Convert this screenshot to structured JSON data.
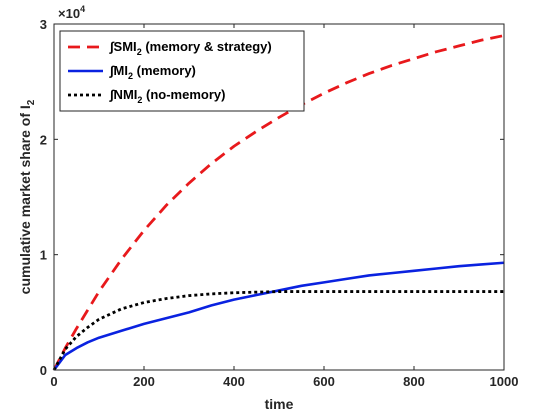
{
  "chart_data": {
    "type": "line",
    "xlabel": "time",
    "ylabel": "cumulative market share of I",
    "ylabel_subscript": "2",
    "exponent_label": {
      "base": "×10",
      "power": "4"
    },
    "xlim": [
      0,
      1000
    ],
    "ylim": [
      0,
      3
    ],
    "xticks": [
      0,
      200,
      400,
      600,
      800,
      1000
    ],
    "yticks": [
      0,
      1,
      2,
      3
    ],
    "grid": false,
    "legend_position": "top-left",
    "x": [
      0,
      25,
      50,
      75,
      100,
      150,
      200,
      250,
      300,
      350,
      400,
      450,
      500,
      550,
      600,
      650,
      700,
      750,
      800,
      850,
      900,
      950,
      1000
    ],
    "series": [
      {
        "name": "∫SMI",
        "name_sub": "2",
        "name_rest": " (memory & strategy)",
        "color": "#e8191c",
        "dash": "12,7",
        "values": [
          0,
          0.19,
          0.36,
          0.52,
          0.68,
          0.96,
          1.21,
          1.43,
          1.62,
          1.79,
          1.94,
          2.07,
          2.19,
          2.3,
          2.4,
          2.49,
          2.57,
          2.64,
          2.7,
          2.76,
          2.81,
          2.86,
          2.9
        ]
      },
      {
        "name": "∫MI",
        "name_sub": "2",
        "name_rest": " (memory)",
        "color": "#0a22e0",
        "dash": "",
        "values": [
          0,
          0.13,
          0.19,
          0.24,
          0.28,
          0.34,
          0.4,
          0.45,
          0.5,
          0.56,
          0.61,
          0.65,
          0.69,
          0.73,
          0.76,
          0.79,
          0.82,
          0.84,
          0.86,
          0.88,
          0.9,
          0.915,
          0.93
        ]
      },
      {
        "name": "∫NMI",
        "name_sub": "2",
        "name_rest": " (no-memory)",
        "color": "#000000",
        "dash": "3,3",
        "values": [
          0,
          0.18,
          0.29,
          0.37,
          0.44,
          0.53,
          0.585,
          0.62,
          0.645,
          0.66,
          0.67,
          0.675,
          0.68,
          0.68,
          0.68,
          0.68,
          0.68,
          0.68,
          0.68,
          0.68,
          0.68,
          0.68,
          0.68
        ]
      }
    ]
  }
}
